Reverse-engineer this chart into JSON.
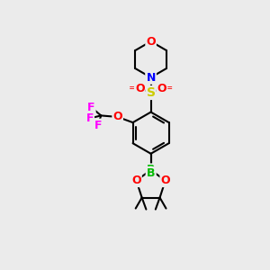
{
  "bg_color": "#ebebeb",
  "bond_color": "#000000",
  "bond_width": 1.5,
  "atom_colors": {
    "O": "#ff0000",
    "N": "#0000ff",
    "S": "#cccc00",
    "F": "#ff00ff",
    "B": "#00bb00",
    "C": "#000000"
  },
  "font_size": 9,
  "font_size_small": 8
}
